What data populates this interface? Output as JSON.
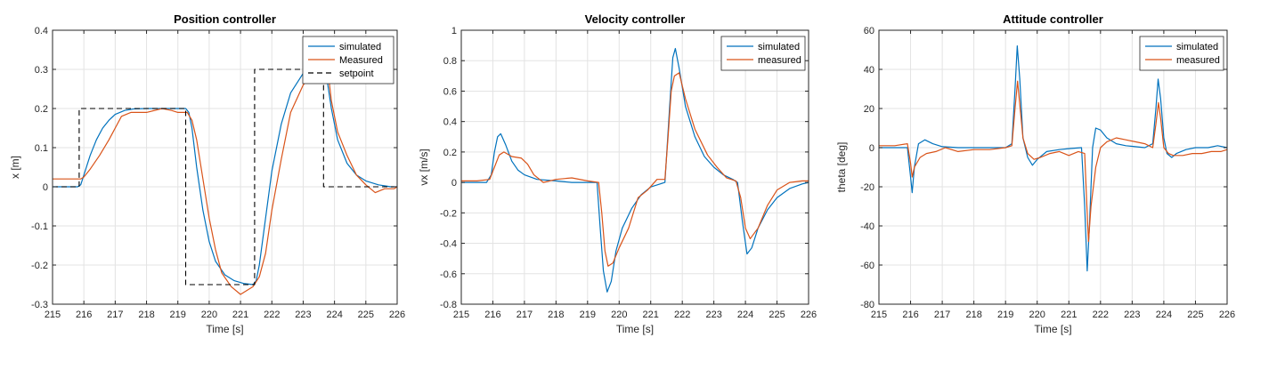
{
  "chart_data": [
    {
      "type": "line",
      "title": "Position controller",
      "xlabel": "Time [s]",
      "ylabel": "x [m]",
      "xlim": [
        215,
        226
      ],
      "ylim": [
        -0.3,
        0.4
      ],
      "xticks": [
        215,
        216,
        217,
        218,
        219,
        220,
        221,
        222,
        223,
        224,
        225,
        226
      ],
      "yticks": [
        -0.3,
        -0.2,
        -0.1,
        0,
        0.1,
        0.2,
        0.3,
        0.4
      ],
      "xtick_labels": [
        "215",
        "216",
        "217",
        "218",
        "219",
        "220",
        "221",
        "222",
        "223",
        "224",
        "225",
        "226"
      ],
      "ytick_labels": [
        "-0.3",
        "-0.2",
        "-0.1",
        "0",
        "0.1",
        "0.2",
        "0.3",
        "0.4"
      ],
      "grid": true,
      "legend_position": "top-right",
      "series": [
        {
          "name": "simulated",
          "color": "#0072BD",
          "style": "solid",
          "x": [
            215,
            215.8,
            215.9,
            216.0,
            216.2,
            216.4,
            216.6,
            216.8,
            217.0,
            217.3,
            217.6,
            218.0,
            218.5,
            219.0,
            219.25,
            219.35,
            219.45,
            219.6,
            219.8,
            220.0,
            220.2,
            220.5,
            220.8,
            221.1,
            221.4,
            221.5,
            221.6,
            221.8,
            222.0,
            222.3,
            222.6,
            223.0,
            223.4,
            223.65,
            223.75,
            223.9,
            224.1,
            224.4,
            224.7,
            225.0,
            225.4,
            225.8,
            226
          ],
          "y": [
            0,
            0,
            0.005,
            0.03,
            0.08,
            0.12,
            0.15,
            0.17,
            0.185,
            0.195,
            0.199,
            0.2,
            0.2,
            0.2,
            0.2,
            0.19,
            0.15,
            0.05,
            -0.06,
            -0.14,
            -0.19,
            -0.225,
            -0.24,
            -0.247,
            -0.25,
            -0.24,
            -0.2,
            -0.08,
            0.04,
            0.16,
            0.24,
            0.29,
            0.3,
            0.3,
            0.28,
            0.2,
            0.12,
            0.06,
            0.03,
            0.015,
            0.005,
            0,
            0
          ]
        },
        {
          "name": "Measured",
          "color": "#D95319",
          "style": "solid",
          "x": [
            215,
            215.5,
            215.9,
            216.0,
            216.2,
            216.5,
            216.8,
            217.0,
            217.2,
            217.5,
            218.0,
            218.5,
            218.8,
            219.0,
            219.3,
            219.45,
            219.6,
            219.8,
            220.0,
            220.2,
            220.4,
            220.7,
            221.0,
            221.2,
            221.4,
            221.6,
            221.8,
            222.0,
            222.3,
            222.6,
            223.0,
            223.3,
            223.6,
            223.8,
            223.9,
            224.1,
            224.4,
            224.7,
            225.0,
            225.3,
            225.6,
            225.9,
            226
          ],
          "y": [
            0.02,
            0.02,
            0.02,
            0.025,
            0.045,
            0.08,
            0.12,
            0.15,
            0.18,
            0.19,
            0.19,
            0.2,
            0.195,
            0.19,
            0.19,
            0.17,
            0.12,
            0.02,
            -0.08,
            -0.16,
            -0.22,
            -0.255,
            -0.275,
            -0.265,
            -0.255,
            -0.23,
            -0.17,
            -0.06,
            0.07,
            0.19,
            0.26,
            0.29,
            0.3,
            0.29,
            0.22,
            0.14,
            0.08,
            0.03,
            0.005,
            -0.015,
            -0.005,
            -0.005,
            0
          ]
        },
        {
          "name": "setpoint",
          "color": "#000000",
          "style": "dashed",
          "x": [
            215,
            215.85,
            215.85,
            219.25,
            219.25,
            221.45,
            221.45,
            223.65,
            223.65,
            226
          ],
          "y": [
            0,
            0,
            0.2,
            0.2,
            -0.25,
            -0.25,
            0.3,
            0.3,
            0,
            0
          ]
        }
      ]
    },
    {
      "type": "line",
      "title": "Velocity controller",
      "xlabel": "Time [s]",
      "ylabel": "vx [m/s]",
      "xlim": [
        215,
        226
      ],
      "ylim": [
        -0.8,
        1
      ],
      "xticks": [
        215,
        216,
        217,
        218,
        219,
        220,
        221,
        222,
        223,
        224,
        225,
        226
      ],
      "yticks": [
        -0.8,
        -0.6,
        -0.4,
        -0.2,
        0,
        0.2,
        0.4,
        0.6,
        0.8,
        1
      ],
      "xtick_labels": [
        "215",
        "216",
        "217",
        "218",
        "219",
        "220",
        "221",
        "222",
        "223",
        "224",
        "225",
        "226"
      ],
      "ytick_labels": [
        "-0.8",
        "-0.6",
        "-0.4",
        "-0.2",
        "0",
        "0.2",
        "0.4",
        "0.6",
        "0.8",
        "1"
      ],
      "grid": true,
      "legend_position": "top-right",
      "series": [
        {
          "name": "simulated",
          "color": "#0072BD",
          "style": "solid",
          "x": [
            215,
            215.8,
            215.95,
            216.05,
            216.15,
            216.25,
            216.4,
            216.6,
            216.8,
            217.0,
            217.4,
            218.0,
            218.5,
            219.0,
            219.3,
            219.4,
            219.5,
            219.62,
            219.75,
            219.9,
            220.1,
            220.4,
            220.7,
            221.0,
            221.3,
            221.45,
            221.6,
            221.7,
            221.78,
            221.9,
            222.1,
            222.4,
            222.7,
            223.0,
            223.3,
            223.6,
            223.75,
            223.9,
            224.05,
            224.2,
            224.4,
            224.7,
            225.0,
            225.4,
            225.8,
            226
          ],
          "y": [
            0,
            0,
            0.05,
            0.2,
            0.3,
            0.32,
            0.25,
            0.14,
            0.08,
            0.05,
            0.02,
            0.01,
            0,
            0,
            0,
            -0.3,
            -0.58,
            -0.72,
            -0.65,
            -0.45,
            -0.3,
            -0.17,
            -0.08,
            -0.03,
            -0.01,
            0,
            0.5,
            0.82,
            0.88,
            0.75,
            0.5,
            0.3,
            0.17,
            0.1,
            0.05,
            0.02,
            0,
            -0.25,
            -0.47,
            -0.43,
            -0.3,
            -0.18,
            -0.1,
            -0.04,
            -0.01,
            0
          ]
        },
        {
          "name": "measured",
          "color": "#D95319",
          "style": "solid",
          "x": [
            215,
            215.5,
            215.9,
            216.05,
            216.2,
            216.35,
            216.6,
            216.9,
            217.1,
            217.3,
            217.6,
            218.0,
            218.5,
            219.0,
            219.35,
            219.45,
            219.55,
            219.65,
            219.8,
            220.0,
            220.3,
            220.6,
            220.9,
            221.2,
            221.45,
            221.55,
            221.65,
            221.75,
            221.9,
            222.1,
            222.4,
            222.8,
            223.1,
            223.4,
            223.7,
            223.85,
            224.0,
            224.15,
            224.4,
            224.7,
            225.0,
            225.4,
            225.8,
            226
          ],
          "y": [
            0.01,
            0.01,
            0.02,
            0.1,
            0.18,
            0.2,
            0.17,
            0.16,
            0.12,
            0.05,
            0,
            0.02,
            0.03,
            0.01,
            0,
            -0.2,
            -0.45,
            -0.55,
            -0.53,
            -0.43,
            -0.3,
            -0.1,
            -0.05,
            0.02,
            0.02,
            0.3,
            0.6,
            0.7,
            0.72,
            0.55,
            0.35,
            0.18,
            0.1,
            0.03,
            0.01,
            -0.1,
            -0.3,
            -0.37,
            -0.3,
            -0.15,
            -0.05,
            0,
            0.01,
            0.01
          ]
        }
      ]
    },
    {
      "type": "line",
      "title": "Attitude controller",
      "xlabel": "Time [s]",
      "ylabel": "theta [deg]",
      "xlim": [
        215,
        226
      ],
      "ylim": [
        -80,
        60
      ],
      "xticks": [
        215,
        216,
        217,
        218,
        219,
        220,
        221,
        222,
        223,
        224,
        225,
        226
      ],
      "yticks": [
        -80,
        -60,
        -40,
        -20,
        0,
        20,
        40,
        60
      ],
      "xtick_labels": [
        "215",
        "216",
        "217",
        "218",
        "219",
        "220",
        "221",
        "222",
        "223",
        "224",
        "225",
        "226"
      ],
      "ytick_labels": [
        "-80",
        "-60",
        "-40",
        "-20",
        "0",
        "20",
        "40",
        "60"
      ],
      "grid": true,
      "legend_position": "top-right",
      "series": [
        {
          "name": "simulated",
          "color": "#0072BD",
          "style": "solid",
          "x": [
            215,
            215.9,
            216.0,
            216.05,
            216.12,
            216.25,
            216.45,
            216.7,
            217.0,
            217.5,
            218.0,
            218.5,
            219.0,
            219.2,
            219.3,
            219.37,
            219.45,
            219.55,
            219.7,
            219.85,
            220.0,
            220.3,
            220.7,
            221.0,
            221.4,
            221.5,
            221.58,
            221.65,
            221.75,
            221.85,
            222.0,
            222.2,
            222.5,
            222.8,
            223.1,
            223.4,
            223.65,
            223.75,
            223.82,
            223.9,
            224.0,
            224.1,
            224.25,
            224.4,
            224.7,
            225.0,
            225.4,
            225.7,
            226
          ],
          "y": [
            0,
            0,
            -15,
            -23,
            -10,
            2,
            4,
            2,
            0.5,
            0,
            0,
            0,
            0,
            2,
            30,
            52,
            35,
            5,
            -5,
            -9,
            -6,
            -2,
            -1,
            -0.5,
            0,
            -30,
            -63,
            -40,
            0,
            10,
            9,
            5,
            2,
            1,
            0.5,
            0,
            2,
            20,
            35,
            25,
            5,
            -3,
            -5,
            -3,
            -1,
            0,
            0,
            1,
            0
          ]
        },
        {
          "name": "measured",
          "color": "#D95319",
          "style": "solid",
          "x": [
            215,
            215.5,
            215.9,
            216.0,
            216.05,
            216.12,
            216.3,
            216.5,
            216.8,
            217.1,
            217.5,
            218.0,
            218.5,
            219.0,
            219.2,
            219.3,
            219.38,
            219.45,
            219.55,
            219.7,
            219.9,
            220.1,
            220.4,
            220.7,
            221.0,
            221.3,
            221.5,
            221.57,
            221.62,
            221.7,
            221.85,
            222.0,
            222.2,
            222.5,
            222.8,
            223.1,
            223.4,
            223.65,
            223.75,
            223.83,
            223.9,
            224.0,
            224.15,
            224.3,
            224.6,
            224.9,
            225.2,
            225.5,
            225.8,
            226
          ],
          "y": [
            1,
            1,
            2,
            -8,
            -15,
            -10,
            -5,
            -3,
            -2,
            0,
            -2,
            -1,
            -1,
            0,
            1,
            20,
            34,
            22,
            5,
            -3,
            -6,
            -5,
            -3,
            -2,
            -4,
            -2,
            -3,
            -30,
            -48,
            -30,
            -10,
            0,
            3,
            5,
            4,
            3,
            2,
            0,
            12,
            23,
            15,
            0,
            -3,
            -4,
            -4,
            -3,
            -3,
            -2,
            -2,
            -1
          ]
        }
      ]
    }
  ]
}
